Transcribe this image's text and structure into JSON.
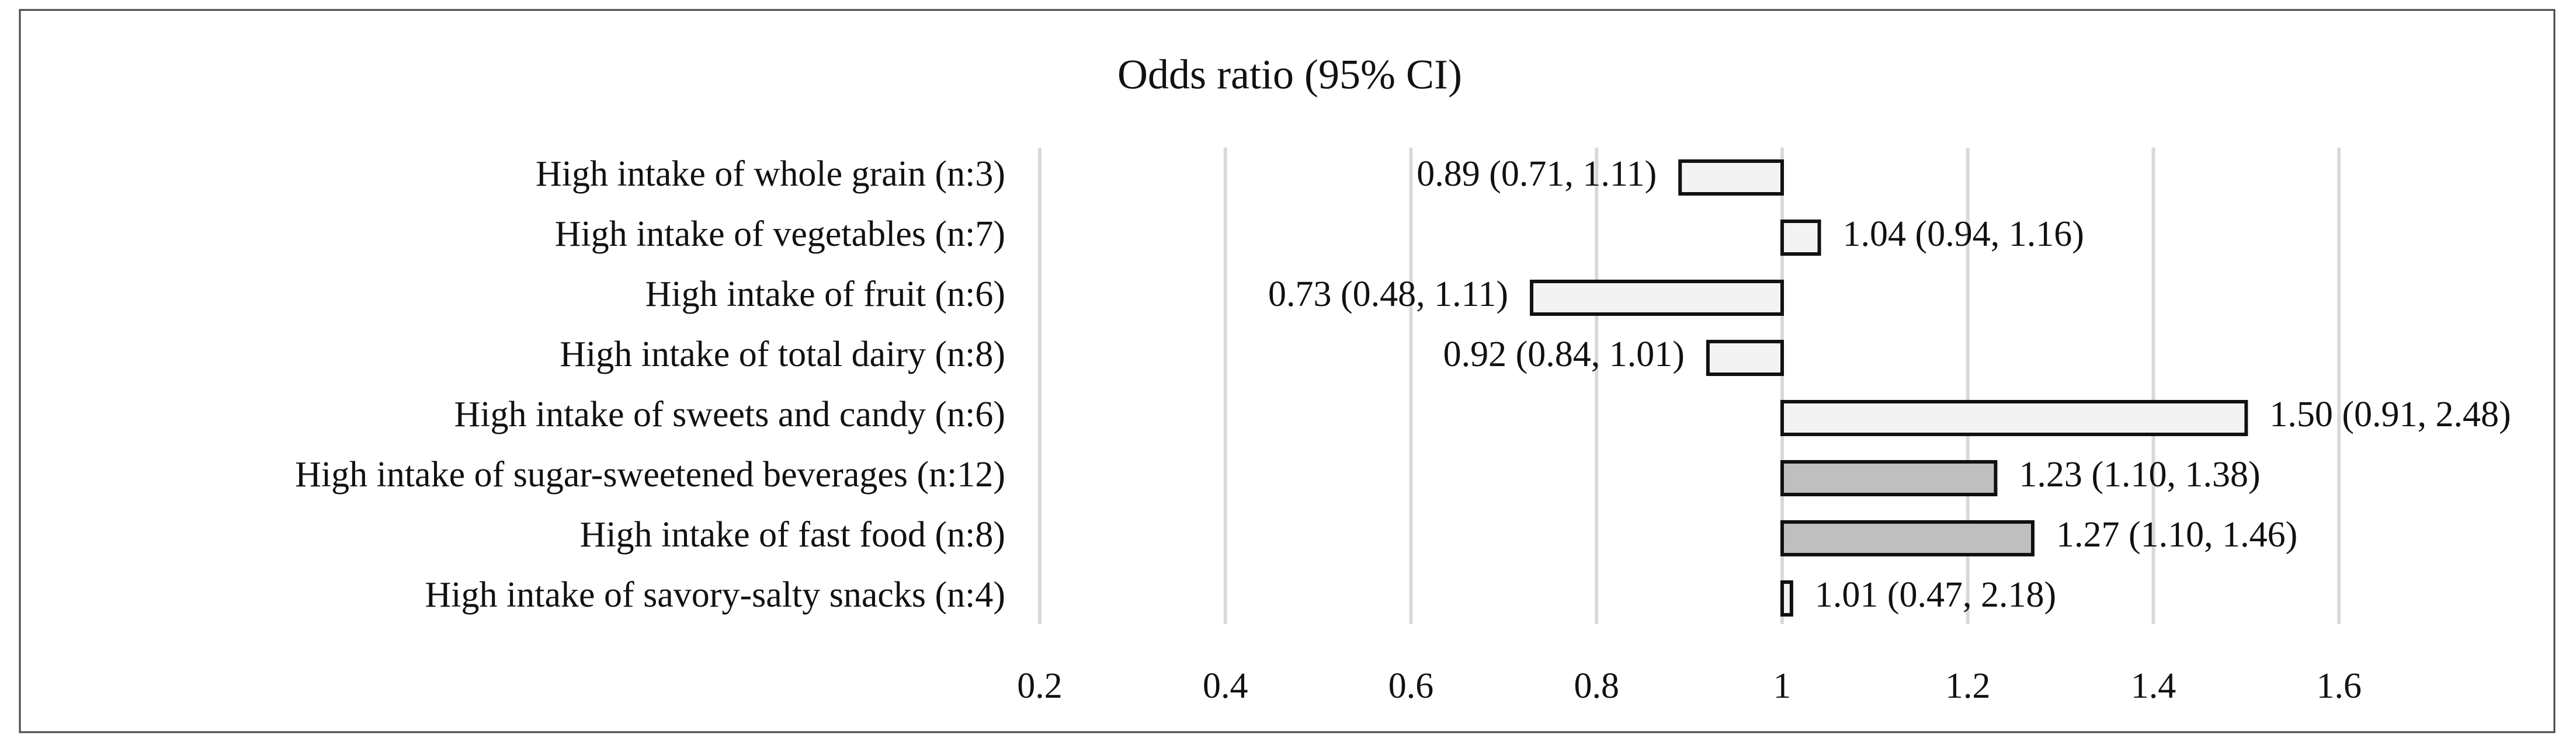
{
  "chart_data": {
    "type": "bar",
    "orientation": "horizontal",
    "title": "Odds ratio (95% CI)",
    "categories": [
      "High intake of whole grain (n:3)",
      "High intake of vegetables (n:7)",
      "High intake of fruit (n:6)",
      "High intake of total dairy (n:8)",
      "High intake of sweets and candy (n:6)",
      "High intake of sugar-sweetened beverages (n:12)",
      "High intake of fast food (n:8)",
      "High intake of savory-salty snacks (n:4)"
    ],
    "values": [
      0.89,
      1.04,
      0.73,
      0.92,
      1.5,
      1.23,
      1.27,
      1.01
    ],
    "value_labels": [
      "0.89 (0.71, 1.11)",
      "1.04 (0.94, 1.16)",
      "0.73 (0.48, 1.11)",
      "0.92 (0.84, 1.01)",
      "1.50 (0.91, 2.48)",
      "1.23 (1.10, 1.38)",
      "1.27 (1.10, 1.46)",
      "1.01 (0.47, 2.18)"
    ],
    "colors": [
      "#f3f3f3",
      "#f3f3f3",
      "#f3f3f3",
      "#f3f3f3",
      "#f3f3f3",
      "#bfbfbf",
      "#bfbfbf",
      "#f3f3f3"
    ],
    "base": 1,
    "xlim": [
      0.2,
      1.8
    ],
    "xticks": [
      0.2,
      0.4,
      0.6,
      0.8,
      1,
      1.2,
      1.4,
      1.6
    ],
    "grid": true
  }
}
